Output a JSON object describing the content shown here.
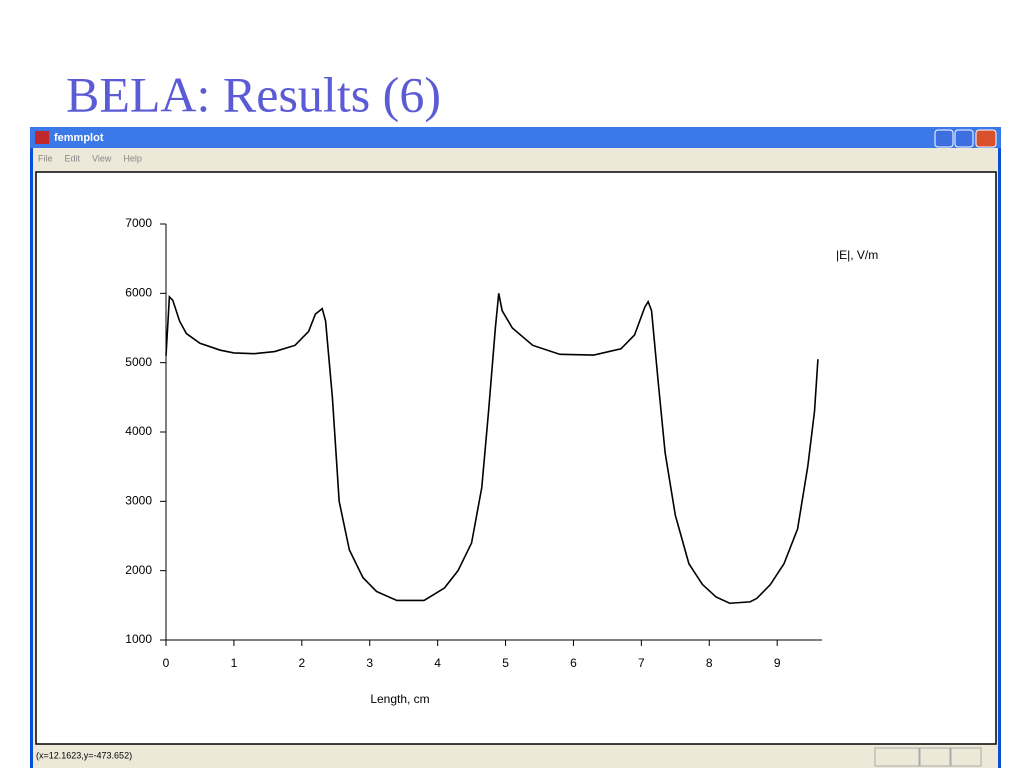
{
  "slide_title": "BELA: Results (6)",
  "window": {
    "title": "femmplot",
    "menu": [
      "File",
      "Edit",
      "View",
      "Help"
    ],
    "status": "(x=12.1623,y=-473.652)"
  },
  "chart_data": {
    "type": "line",
    "xlabel": "Length, cm",
    "ylabel": "|E|, V/m",
    "x": [
      0,
      0.05,
      0.1,
      0.2,
      0.3,
      0.5,
      0.8,
      1.0,
      1.3,
      1.6,
      1.9,
      2.1,
      2.2,
      2.3,
      2.35,
      2.45,
      2.55,
      2.7,
      2.9,
      3.1,
      3.4,
      3.8,
      4.1,
      4.3,
      4.5,
      4.65,
      4.75,
      4.85,
      4.9,
      4.95,
      5.1,
      5.4,
      5.8,
      6.3,
      6.7,
      6.9,
      7.05,
      7.1,
      7.15,
      7.25,
      7.35,
      7.5,
      7.7,
      7.9,
      8.1,
      8.3,
      8.6,
      8.7,
      8.9,
      9.1,
      9.3,
      9.45,
      9.55,
      9.6
    ],
    "values": [
      5100,
      5950,
      5900,
      5600,
      5420,
      5280,
      5180,
      5140,
      5130,
      5160,
      5250,
      5450,
      5700,
      5780,
      5600,
      4500,
      3000,
      2300,
      1900,
      1700,
      1570,
      1570,
      1750,
      2000,
      2400,
      3200,
      4300,
      5500,
      6000,
      5750,
      5500,
      5250,
      5120,
      5110,
      5200,
      5400,
      5800,
      5880,
      5750,
      4700,
      3700,
      2800,
      2100,
      1800,
      1620,
      1530,
      1550,
      1600,
      1800,
      2100,
      2600,
      3500,
      4300,
      5050
    ],
    "color": "#000000",
    "xlim": [
      0,
      9.66
    ],
    "xticks": [
      0,
      1,
      2,
      3,
      4,
      5,
      6,
      7,
      8,
      9
    ],
    "ylim": [
      1000,
      7000
    ],
    "yticks": [
      1000,
      2000,
      3000,
      4000,
      5000,
      6000,
      7000
    ],
    "grid": false
  }
}
